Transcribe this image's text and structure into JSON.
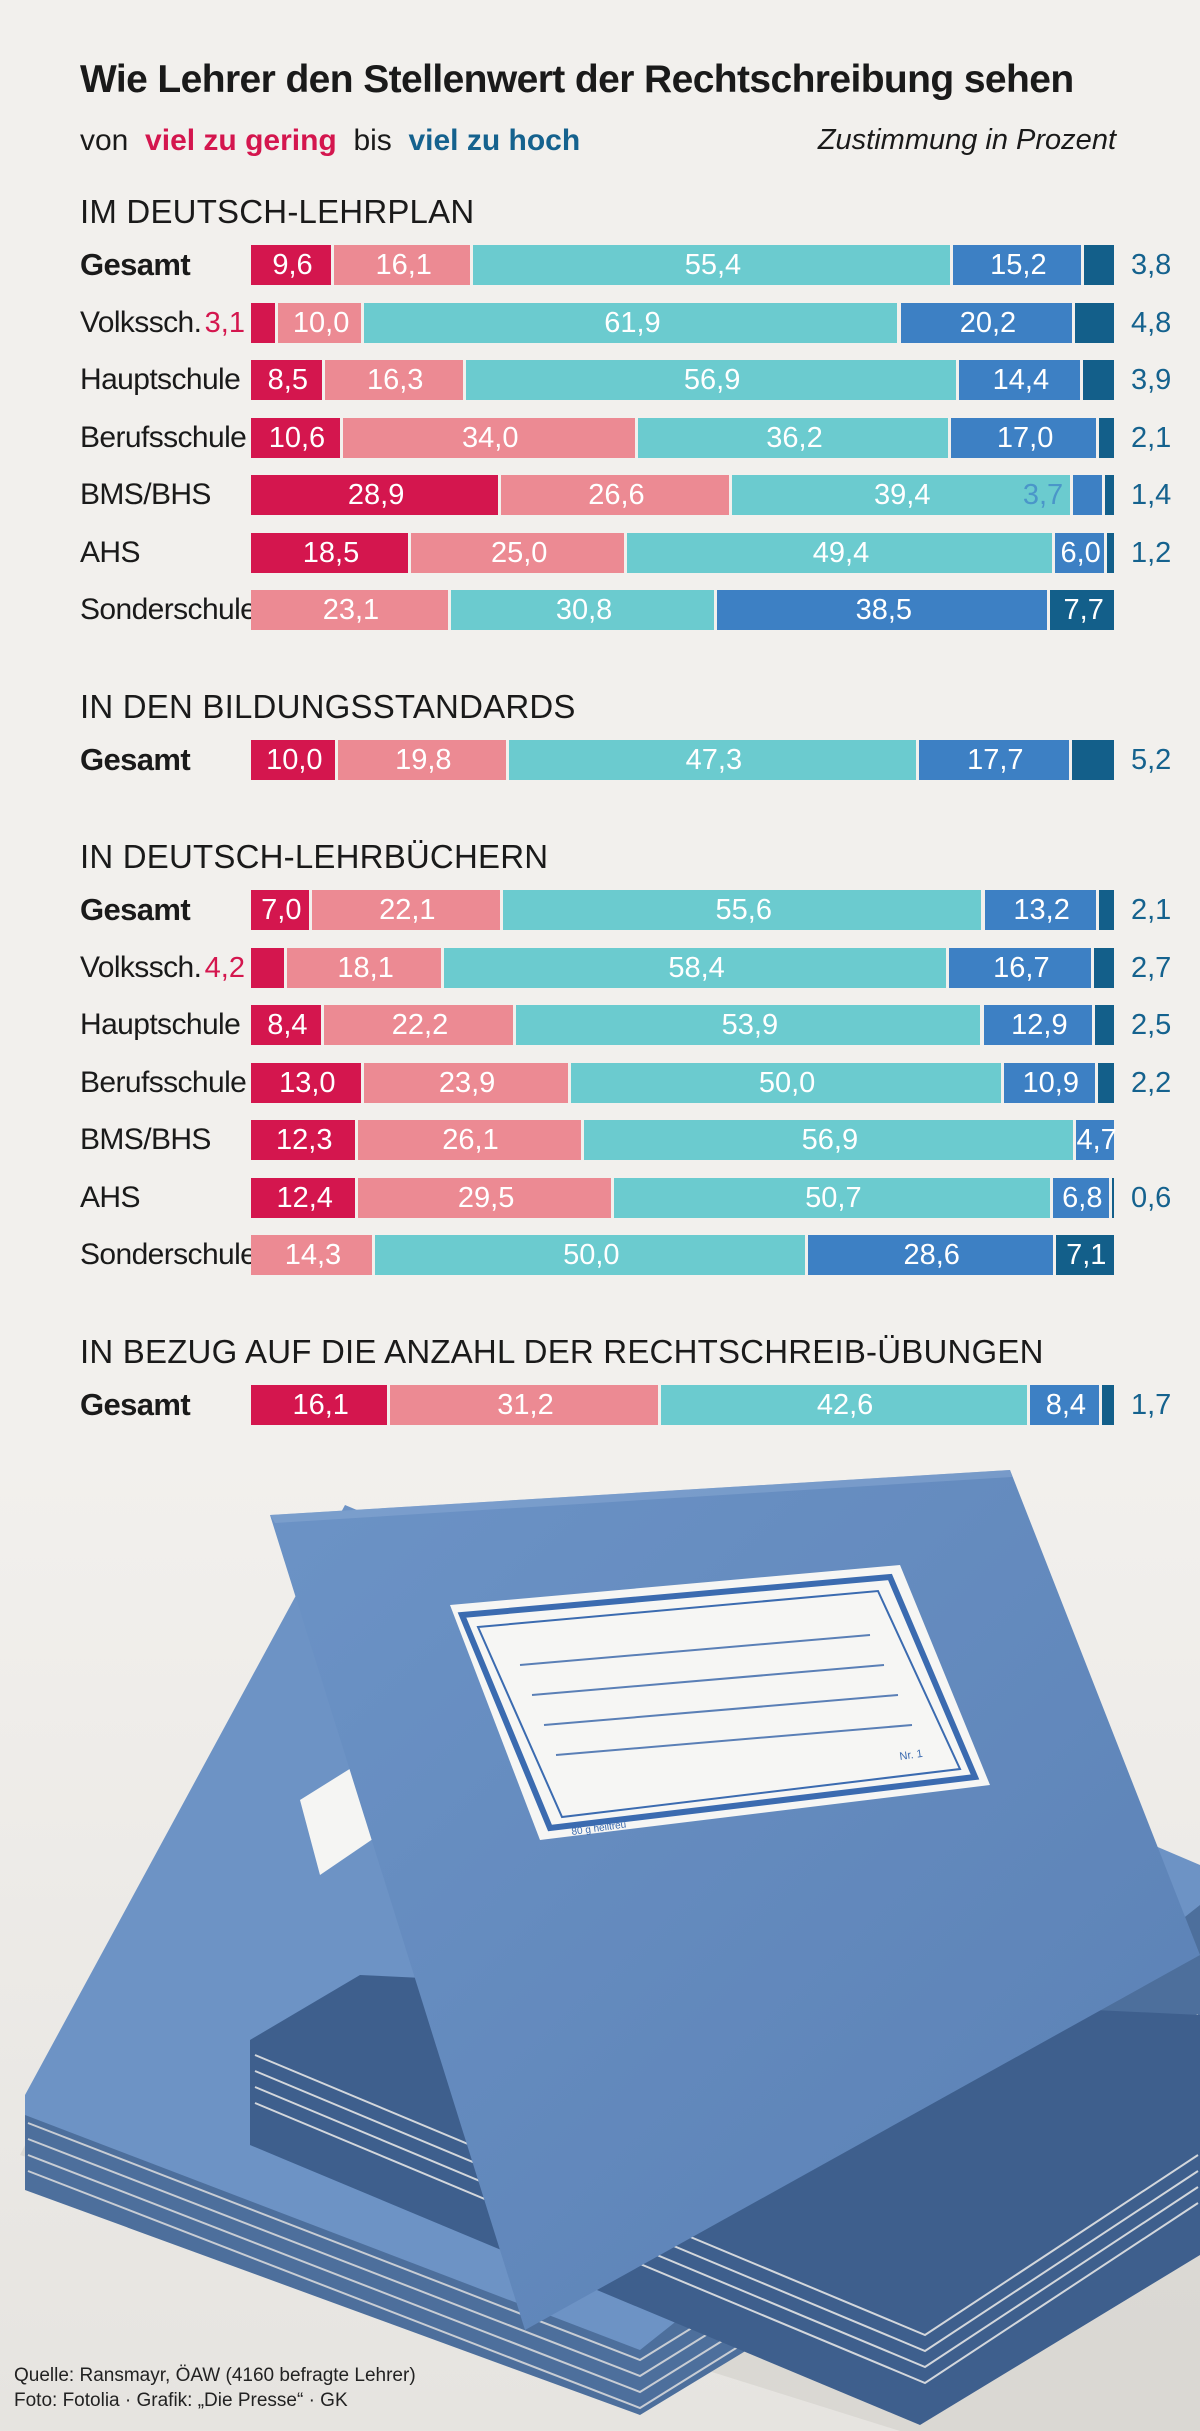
{
  "chart_data": {
    "type": "bar",
    "stacked": true,
    "orientation": "horizontal",
    "title": "Wie Lehrer den Stellenwert der Rechtschreibung sehen",
    "subtitle": {
      "von": "von",
      "low": "viel zu gering",
      "bis": "bis",
      "high": "viel zu hoch"
    },
    "unit_label": "Zustimmung in Prozent",
    "category_colors": [
      "#d4164e",
      "#ec8a93",
      "#6bcbcf",
      "#3d80c4",
      "#135f8a"
    ],
    "xlim": [
      0,
      100
    ],
    "sections": [
      {
        "label": "IM DEUTSCH-LEHRPLAN",
        "rows": [
          {
            "label": "Gesamt",
            "bold": true,
            "values": [
              9.6,
              16.1,
              55.4,
              15.2,
              3.8
            ]
          },
          {
            "label": "Volkssch.",
            "values": [
              3.1,
              10.0,
              61.9,
              20.2,
              4.8
            ]
          },
          {
            "label": "Hauptschule",
            "values": [
              8.5,
              16.3,
              56.9,
              14.4,
              3.9
            ]
          },
          {
            "label": "Berufsschule",
            "values": [
              10.6,
              34.0,
              36.2,
              17.0,
              2.1
            ]
          },
          {
            "label": "BMS/BHS",
            "values": [
              28.9,
              26.6,
              39.4,
              3.7,
              1.4
            ]
          },
          {
            "label": "AHS",
            "values": [
              18.5,
              25.0,
              49.4,
              6.0,
              1.2
            ]
          },
          {
            "label": "Sonderschule",
            "values": [
              0,
              23.1,
              30.8,
              38.5,
              7.7
            ]
          }
        ]
      },
      {
        "label": "IN DEN BILDUNGSSTANDARDS",
        "rows": [
          {
            "label": "Gesamt",
            "bold": true,
            "values": [
              10.0,
              19.8,
              47.3,
              17.7,
              5.2
            ]
          }
        ]
      },
      {
        "label": "IN DEUTSCH-LEHRBÜCHERN",
        "rows": [
          {
            "label": "Gesamt",
            "bold": true,
            "values": [
              7.0,
              22.1,
              55.6,
              13.2,
              2.1
            ]
          },
          {
            "label": "Volkssch.",
            "values": [
              4.2,
              18.1,
              58.4,
              16.7,
              2.7
            ]
          },
          {
            "label": "Hauptschule",
            "values": [
              8.4,
              22.2,
              53.9,
              12.9,
              2.5
            ]
          },
          {
            "label": "Berufsschule",
            "values": [
              13.0,
              23.9,
              50.0,
              10.9,
              2.2
            ]
          },
          {
            "label": "BMS/BHS",
            "values": [
              12.3,
              26.1,
              56.9,
              4.7,
              0
            ]
          },
          {
            "label": "AHS",
            "values": [
              12.4,
              29.5,
              50.7,
              6.8,
              0.6
            ]
          },
          {
            "label": "Sonderschule",
            "values": [
              0,
              14.3,
              50.0,
              28.6,
              7.1
            ]
          }
        ]
      },
      {
        "label": "IN BEZUG AUF DIE ANZAHL DER RECHTSCHREIB-ÜBUNGEN",
        "rows": [
          {
            "label": "Gesamt",
            "bold": true,
            "values": [
              16.1,
              31.2,
              42.6,
              8.4,
              1.7
            ]
          }
        ]
      }
    ]
  },
  "image": {
    "notebook_label": "Nr. 1",
    "notebook_subtext": "80 g heiltreu"
  },
  "source": {
    "line1": "Quelle: Ransmayr, ÖAW (4160 befragte Lehrer)",
    "line2": "Foto: Fotolia · Grafik: „Die Presse“ · GK"
  }
}
